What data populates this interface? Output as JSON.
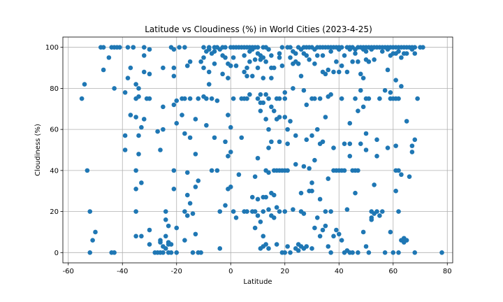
{
  "chart_data": {
    "type": "scatter",
    "title": "Latitude vs Cloudiness (%) in World Cities (2023-4-25)",
    "xlabel": "Latitude",
    "ylabel": "Cloudiness (%)",
    "xlim": [
      -62,
      82
    ],
    "ylim": [
      -5,
      105
    ],
    "xticks": [
      -60,
      -40,
      -20,
      0,
      20,
      40,
      60,
      80
    ],
    "yticks": [
      0,
      20,
      40,
      60,
      80,
      100
    ],
    "grid": true,
    "marker_color": "#1f77b4",
    "points": [
      [
        -55,
        75
      ],
      [
        -54,
        82
      ],
      [
        -53,
        40
      ],
      [
        -52,
        20
      ],
      [
        -51,
        6
      ],
      [
        -52,
        0
      ],
      [
        -50,
        10
      ],
      [
        -48,
        100
      ],
      [
        -47,
        100
      ],
      [
        -47,
        89
      ],
      [
        -45,
        95
      ],
      [
        -44,
        100
      ],
      [
        -43,
        100
      ],
      [
        -43,
        80
      ],
      [
        -43,
        0
      ],
      [
        -44,
        0
      ],
      [
        -42,
        100
      ],
      [
        -41,
        100
      ],
      [
        -39,
        50
      ],
      [
        -39,
        57
      ],
      [
        -39,
        78
      ],
      [
        -38,
        85
      ],
      [
        -38,
        100
      ],
      [
        -37,
        90
      ],
      [
        -37,
        67
      ],
      [
        -36,
        100
      ],
      [
        -36,
        100
      ],
      [
        -35,
        75
      ],
      [
        -35,
        82
      ],
      [
        -35,
        66
      ],
      [
        -35,
        40
      ],
      [
        -35,
        31
      ],
      [
        -35,
        20
      ],
      [
        -35,
        8
      ],
      [
        -34,
        57
      ],
      [
        -34,
        48
      ],
      [
        -34,
        80
      ],
      [
        -34,
        76
      ],
      [
        -33,
        61
      ],
      [
        -33,
        34
      ],
      [
        -33,
        8
      ],
      [
        -32,
        65
      ],
      [
        -32,
        100
      ],
      [
        -32,
        96
      ],
      [
        -32,
        88
      ],
      [
        -31,
        75
      ],
      [
        -30,
        87
      ],
      [
        -30,
        75
      ],
      [
        -30,
        11
      ],
      [
        -30,
        4
      ],
      [
        -30,
        99
      ],
      [
        -28,
        0
      ],
      [
        -27,
        59
      ],
      [
        -26,
        50
      ],
      [
        -26,
        6
      ],
      [
        -25,
        71
      ],
      [
        -25,
        60
      ],
      [
        -25,
        90
      ],
      [
        -24,
        20
      ],
      [
        -24,
        16
      ],
      [
        -23,
        13
      ],
      [
        -23,
        4
      ],
      [
        -22,
        100
      ],
      [
        -21,
        99
      ],
      [
        -21,
        90
      ],
      [
        -21,
        86
      ],
      [
        -21,
        72
      ],
      [
        -21,
        40
      ],
      [
        -21,
        31
      ],
      [
        -20,
        74
      ],
      [
        -20,
        63
      ],
      [
        -20,
        12
      ],
      [
        -20,
        0
      ],
      [
        -19,
        100
      ],
      [
        -24,
        8
      ],
      [
        -26,
        5
      ],
      [
        -25,
        3
      ],
      [
        -24,
        2
      ],
      [
        -23,
        0
      ],
      [
        -22,
        0
      ],
      [
        -26,
        0
      ],
      [
        -25,
        0
      ],
      [
        -27,
        0
      ],
      [
        -23,
        5
      ],
      [
        -22,
        4
      ],
      [
        -18,
        75
      ],
      [
        -18,
        67
      ],
      [
        -17,
        100
      ],
      [
        -17,
        75
      ],
      [
        -17,
        58
      ],
      [
        -17,
        20
      ],
      [
        -17,
        6
      ],
      [
        -16,
        91
      ],
      [
        -16,
        39
      ],
      [
        -16,
        28
      ],
      [
        -16,
        18
      ],
      [
        -15,
        93
      ],
      [
        -15,
        75
      ],
      [
        -15,
        56
      ],
      [
        -15,
        24
      ],
      [
        -14,
        19
      ],
      [
        -14,
        0
      ],
      [
        -13,
        65
      ],
      [
        -13,
        48
      ],
      [
        -13,
        32
      ],
      [
        -13,
        9
      ],
      [
        -12,
        75
      ],
      [
        -12,
        35
      ],
      [
        -11,
        93
      ],
      [
        -11,
        0
      ],
      [
        -12,
        0
      ],
      [
        -10,
        100
      ],
      [
        -10,
        90
      ],
      [
        -10,
        76
      ],
      [
        -10,
        95
      ],
      [
        -9,
        98
      ],
      [
        -9,
        75
      ],
      [
        -9,
        62
      ],
      [
        -8,
        100
      ],
      [
        -8,
        99
      ],
      [
        -8,
        88
      ],
      [
        -8,
        82
      ],
      [
        -7,
        97
      ],
      [
        -7,
        75
      ],
      [
        -7,
        40
      ],
      [
        -6,
        100
      ],
      [
        -6,
        98
      ],
      [
        -6,
        92
      ],
      [
        -6,
        56
      ],
      [
        -5,
        100
      ],
      [
        -5,
        74
      ],
      [
        -5,
        40
      ],
      [
        -4,
        99
      ],
      [
        -4,
        2
      ],
      [
        -4,
        20
      ],
      [
        -3,
        100
      ],
      [
        -3,
        96
      ],
      [
        -3,
        87
      ],
      [
        -2,
        100
      ],
      [
        -2,
        95
      ],
      [
        -2,
        54
      ],
      [
        -2,
        23
      ],
      [
        -1,
        92
      ],
      [
        -1,
        85
      ],
      [
        -1,
        67
      ],
      [
        -1,
        47
      ],
      [
        -1,
        31
      ],
      [
        0,
        100
      ],
      [
        0,
        91
      ],
      [
        0,
        61
      ],
      [
        0,
        49
      ],
      [
        0,
        32
      ],
      [
        1,
        100
      ],
      [
        1,
        95
      ],
      [
        1,
        75
      ],
      [
        1,
        20
      ],
      [
        2,
        100
      ],
      [
        2,
        91
      ],
      [
        2,
        17
      ],
      [
        3,
        100
      ],
      [
        3,
        38
      ],
      [
        4,
        100
      ],
      [
        4,
        75
      ],
      [
        4,
        56
      ],
      [
        5,
        100
      ],
      [
        5,
        96
      ],
      [
        5,
        88
      ],
      [
        5,
        75
      ],
      [
        5,
        20
      ],
      [
        6,
        100
      ],
      [
        6,
        90
      ],
      [
        6,
        86
      ],
      [
        6,
        75
      ],
      [
        6,
        20
      ],
      [
        7,
        100
      ],
      [
        7,
        98
      ],
      [
        7,
        93
      ],
      [
        7,
        77
      ],
      [
        8,
        100
      ],
      [
        8,
        99
      ],
      [
        8,
        86
      ],
      [
        8,
        27
      ],
      [
        8,
        20
      ],
      [
        9,
        100
      ],
      [
        9,
        94
      ],
      [
        9,
        37
      ],
      [
        9,
        12
      ],
      [
        9,
        20
      ],
      [
        10,
        100
      ],
      [
        10,
        97
      ],
      [
        10,
        90
      ],
      [
        10,
        75
      ],
      [
        10,
        46
      ],
      [
        10,
        26
      ],
      [
        10,
        18
      ],
      [
        11,
        96
      ],
      [
        11,
        94
      ],
      [
        11,
        77
      ],
      [
        11,
        73
      ],
      [
        11,
        69
      ],
      [
        11,
        15
      ],
      [
        11,
        2
      ],
      [
        12,
        100
      ],
      [
        12,
        95
      ],
      [
        12,
        85
      ],
      [
        12,
        73
      ],
      [
        12,
        20
      ],
      [
        12,
        3
      ],
      [
        12,
        8
      ],
      [
        12,
        27
      ],
      [
        13,
        100
      ],
      [
        13,
        93
      ],
      [
        13,
        77
      ],
      [
        13,
        65
      ],
      [
        13,
        40
      ],
      [
        13,
        27
      ],
      [
        13,
        4
      ],
      [
        14,
        99
      ],
      [
        14,
        75
      ],
      [
        14,
        60
      ],
      [
        14,
        51
      ],
      [
        14,
        39
      ],
      [
        14,
        21
      ],
      [
        14,
        2
      ],
      [
        15,
        96
      ],
      [
        15,
        90
      ],
      [
        15,
        85
      ],
      [
        15,
        71
      ],
      [
        15,
        54
      ],
      [
        15,
        29
      ],
      [
        15,
        18
      ],
      [
        16,
        90
      ],
      [
        16,
        69
      ],
      [
        16,
        40
      ],
      [
        16,
        28
      ],
      [
        16,
        17
      ],
      [
        17,
        75
      ],
      [
        17,
        65
      ],
      [
        17,
        40
      ],
      [
        17,
        22
      ],
      [
        17,
        4
      ],
      [
        18,
        97
      ],
      [
        18,
        95
      ],
      [
        18,
        75
      ],
      [
        18,
        66
      ],
      [
        18,
        54
      ],
      [
        18,
        40
      ],
      [
        18,
        20
      ],
      [
        19,
        100
      ],
      [
        19,
        91
      ],
      [
        19,
        40
      ],
      [
        19,
        0
      ],
      [
        20,
        78
      ],
      [
        20,
        75
      ],
      [
        20,
        66
      ],
      [
        20,
        40
      ],
      [
        20,
        20
      ],
      [
        20,
        0
      ],
      [
        21,
        100
      ],
      [
        21,
        60
      ],
      [
        21,
        53
      ],
      [
        21,
        40
      ],
      [
        21,
        3
      ],
      [
        22,
        100
      ],
      [
        22,
        95
      ],
      [
        22,
        64
      ],
      [
        22,
        0
      ],
      [
        23,
        98
      ],
      [
        23,
        92
      ],
      [
        23,
        80
      ],
      [
        23,
        21
      ],
      [
        24,
        97
      ],
      [
        24,
        93
      ],
      [
        24,
        57
      ],
      [
        24,
        43
      ],
      [
        24,
        2
      ],
      [
        25,
        100
      ],
      [
        25,
        92
      ],
      [
        25,
        1
      ],
      [
        25,
        4
      ],
      [
        26,
        99
      ],
      [
        26,
        86
      ],
      [
        26,
        29
      ],
      [
        26,
        20
      ],
      [
        26,
        3
      ],
      [
        27,
        100
      ],
      [
        27,
        97
      ],
      [
        27,
        79
      ],
      [
        27,
        42
      ],
      [
        27,
        19
      ],
      [
        27,
        2
      ],
      [
        28,
        100
      ],
      [
        28,
        96
      ],
      [
        28,
        72
      ],
      [
        28,
        55
      ],
      [
        28,
        3
      ],
      [
        29,
        100
      ],
      [
        29,
        94
      ],
      [
        29,
        30
      ],
      [
        29,
        41
      ],
      [
        30,
        100
      ],
      [
        30,
        75
      ],
      [
        30,
        57
      ],
      [
        30,
        34
      ],
      [
        30,
        30
      ],
      [
        30,
        2
      ],
      [
        31,
        99
      ],
      [
        31,
        92
      ],
      [
        31,
        75
      ],
      [
        31,
        45
      ],
      [
        31,
        12
      ],
      [
        32,
        100
      ],
      [
        32,
        96
      ],
      [
        32,
        60
      ],
      [
        32,
        17
      ],
      [
        33,
        100
      ],
      [
        33,
        75
      ],
      [
        33,
        53
      ],
      [
        33,
        26
      ],
      [
        33,
        8
      ],
      [
        34,
        100
      ],
      [
        34,
        96
      ],
      [
        34,
        88
      ],
      [
        34,
        54
      ],
      [
        34,
        11
      ],
      [
        35,
        100
      ],
      [
        35,
        87
      ],
      [
        35,
        66
      ],
      [
        35,
        20
      ],
      [
        35,
        13
      ],
      [
        36,
        100
      ],
      [
        36,
        89
      ],
      [
        36,
        76
      ],
      [
        36,
        36
      ],
      [
        36,
        3
      ],
      [
        37,
        100
      ],
      [
        37,
        98
      ],
      [
        37,
        77
      ],
      [
        37,
        20
      ],
      [
        37,
        0
      ],
      [
        38,
        100
      ],
      [
        38,
        88
      ],
      [
        38,
        51
      ],
      [
        38,
        40
      ],
      [
        38,
        8
      ],
      [
        39,
        100
      ],
      [
        39,
        93
      ],
      [
        39,
        40
      ],
      [
        39,
        11
      ],
      [
        40,
        100
      ],
      [
        40,
        99
      ],
      [
        40,
        88
      ],
      [
        40,
        40
      ],
      [
        40,
        9
      ],
      [
        41,
        100
      ],
      [
        41,
        91
      ],
      [
        41,
        75
      ],
      [
        41,
        40
      ],
      [
        41,
        6
      ],
      [
        42,
        96
      ],
      [
        42,
        53
      ],
      [
        42,
        40
      ],
      [
        42,
        0
      ],
      [
        43,
        100
      ],
      [
        43,
        88
      ],
      [
        43,
        21
      ],
      [
        43,
        1
      ],
      [
        44,
        100
      ],
      [
        44,
        99
      ],
      [
        44,
        63
      ],
      [
        44,
        47
      ],
      [
        44,
        53
      ],
      [
        44,
        0
      ],
      [
        45,
        100
      ],
      [
        45,
        93
      ],
      [
        45,
        40
      ],
      [
        45,
        0
      ],
      [
        46,
        99
      ],
      [
        46,
        97
      ],
      [
        46,
        75
      ],
      [
        46,
        40
      ],
      [
        46,
        29
      ],
      [
        47,
        100
      ],
      [
        47,
        93
      ],
      [
        47,
        69
      ],
      [
        47,
        40
      ],
      [
        47,
        0
      ],
      [
        48,
        100
      ],
      [
        48,
        87
      ],
      [
        48,
        79
      ],
      [
        48,
        53
      ],
      [
        49,
        100
      ],
      [
        49,
        99
      ],
      [
        49,
        85
      ],
      [
        49,
        71
      ],
      [
        49,
        10
      ],
      [
        50,
        100
      ],
      [
        50,
        98
      ],
      [
        50,
        94
      ],
      [
        50,
        75
      ],
      [
        50,
        58
      ],
      [
        50,
        50
      ],
      [
        50,
        3
      ],
      [
        51,
        100
      ],
      [
        51,
        93
      ],
      [
        51,
        75
      ],
      [
        51,
        0
      ],
      [
        52,
        100
      ],
      [
        52,
        99
      ],
      [
        52,
        17
      ],
      [
        52,
        16
      ],
      [
        52,
        20
      ],
      [
        53,
        100
      ],
      [
        53,
        94
      ],
      [
        53,
        33
      ],
      [
        53,
        19
      ],
      [
        54,
        100
      ],
      [
        54,
        55
      ],
      [
        54,
        47
      ],
      [
        54,
        20
      ],
      [
        55,
        100
      ],
      [
        55,
        75
      ],
      [
        55,
        18
      ],
      [
        56,
        100
      ],
      [
        56,
        98
      ],
      [
        56,
        20
      ],
      [
        57,
        100
      ],
      [
        57,
        79
      ],
      [
        57,
        0
      ],
      [
        58,
        100
      ],
      [
        58,
        99
      ],
      [
        58,
        89
      ],
      [
        58,
        51
      ],
      [
        59,
        100
      ],
      [
        59,
        96
      ],
      [
        59,
        78
      ],
      [
        59,
        75
      ],
      [
        59,
        10
      ],
      [
        60,
        100
      ],
      [
        60,
        97
      ],
      [
        60,
        75
      ],
      [
        60,
        0
      ],
      [
        61,
        100
      ],
      [
        61,
        97
      ],
      [
        61,
        84
      ],
      [
        61,
        75
      ],
      [
        61,
        52
      ],
      [
        61,
        40
      ],
      [
        61,
        30
      ],
      [
        62,
        100
      ],
      [
        62,
        98
      ],
      [
        62,
        75
      ],
      [
        62,
        40
      ],
      [
        62,
        20
      ],
      [
        62,
        0
      ],
      [
        63,
        100
      ],
      [
        63,
        95
      ],
      [
        63,
        81
      ],
      [
        63,
        38
      ],
      [
        63,
        6
      ],
      [
        64,
        100
      ],
      [
        64,
        97
      ],
      [
        64,
        5
      ],
      [
        64,
        7
      ],
      [
        65,
        100
      ],
      [
        65,
        97
      ],
      [
        65,
        64
      ],
      [
        65,
        6
      ],
      [
        66,
        100
      ],
      [
        66,
        37
      ],
      [
        67,
        100
      ],
      [
        67,
        99
      ],
      [
        67,
        52
      ],
      [
        67,
        49
      ],
      [
        68,
        100
      ],
      [
        68,
        97
      ],
      [
        68,
        55
      ],
      [
        68,
        0
      ],
      [
        69,
        75
      ],
      [
        70,
        100
      ],
      [
        71,
        100
      ],
      [
        78,
        0
      ]
    ]
  }
}
